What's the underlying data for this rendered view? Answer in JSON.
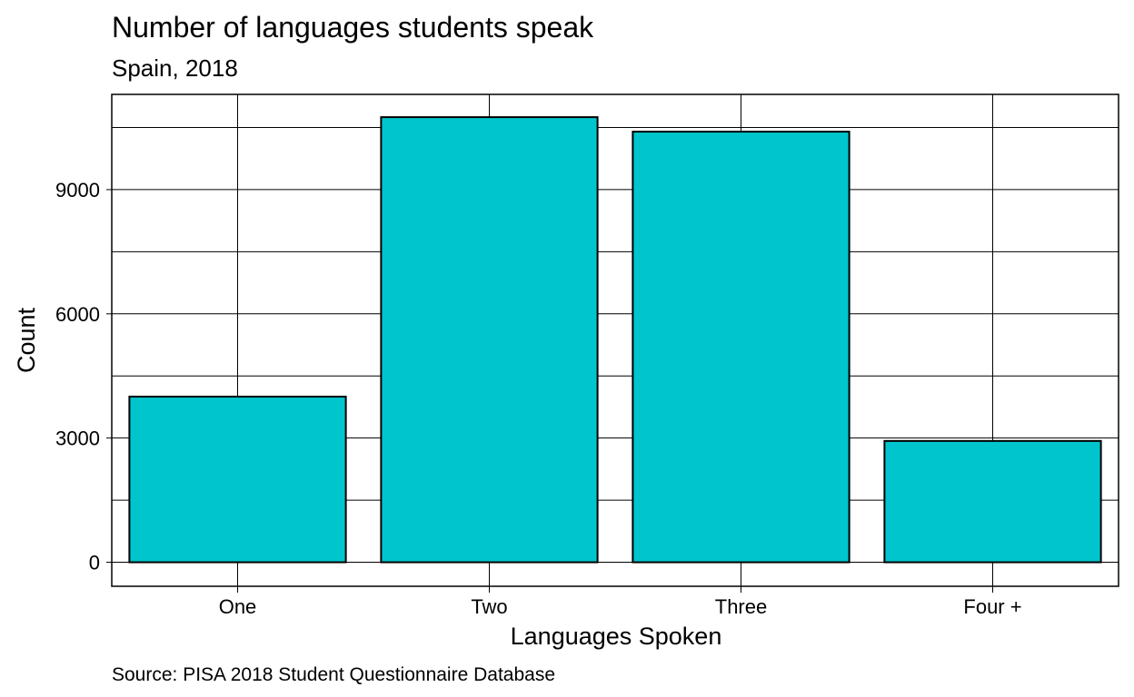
{
  "chart_data": {
    "type": "bar",
    "title": "Number of languages students speak",
    "subtitle": "Spain, 2018",
    "xlabel": "Languages Spoken",
    "ylabel": "Count",
    "caption": "Source: PISA 2018 Student Questionnaire Database",
    "categories": [
      "One",
      "Two",
      "Three",
      "Four +"
    ],
    "values": [
      4000,
      10750,
      10400,
      2930
    ],
    "ylim": [
      -580,
      11300
    ],
    "yticks": [
      0,
      3000,
      6000,
      9000
    ],
    "ytick_labels": [
      "0",
      "3000",
      "6000",
      "9000"
    ],
    "y_minor_gridlines": [
      1500,
      4500,
      7500,
      10500
    ],
    "grid": true,
    "bar_color": "#00C5CD",
    "border_color": "#000000",
    "background_color": "#FFFFFF"
  }
}
